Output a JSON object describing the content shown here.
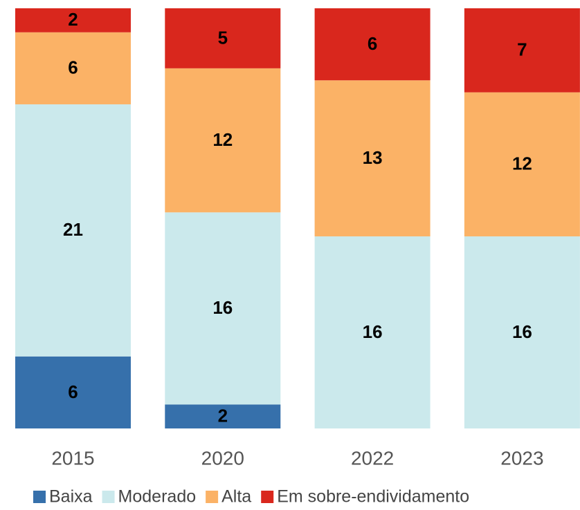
{
  "chart_data": {
    "type": "stacked_bar",
    "categories": [
      "2015",
      "2020",
      "2022",
      "2023"
    ],
    "series": [
      {
        "name": "Baixa",
        "color": "#3670ab",
        "values": [
          6,
          2,
          null,
          null
        ]
      },
      {
        "name": "Moderado",
        "color": "#cbe9ec",
        "values": [
          21,
          16,
          16,
          16
        ]
      },
      {
        "name": "Alta",
        "color": "#fbb266",
        "values": [
          6,
          12,
          13,
          12
        ]
      },
      {
        "name": "Em sobre-endividamento",
        "color": "#d9271d",
        "values": [
          2,
          5,
          6,
          7
        ]
      }
    ],
    "ylim": [
      0,
      35
    ]
  }
}
